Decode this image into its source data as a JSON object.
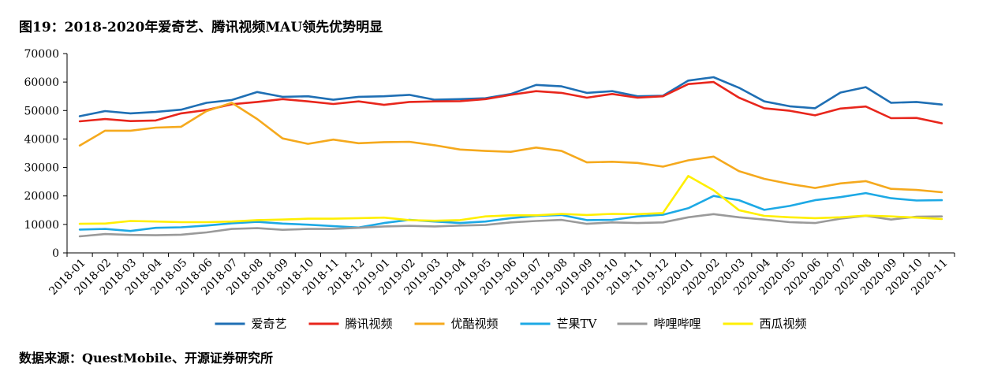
{
  "title": "图19：2018-2020年爱奇艺、腾讯视频MAU领先优势明显",
  "source": "数据来源：QuestMobile、开源证券研究所",
  "chart_data": {
    "type": "line",
    "x": [
      "2018-01",
      "2018-02",
      "2018-03",
      "2018-04",
      "2018-05",
      "2018-06",
      "2018-07",
      "2018-08",
      "2018-09",
      "2018-10",
      "2018-11",
      "2018-12",
      "2019-01",
      "2019-02",
      "2019-03",
      "2019-04",
      "2019-05",
      "2019-06",
      "2019-07",
      "2019-08",
      "2019-09",
      "2019-10",
      "2019-11",
      "2019-12",
      "2020-01",
      "2020-02",
      "2020-03",
      "2020-04",
      "2020-05",
      "2020-06",
      "2020-07",
      "2020-08",
      "2020-09",
      "2020-10",
      "2020-11"
    ],
    "yticks": [
      "0",
      "10000",
      "20000",
      "30000",
      "40000",
      "50000",
      "60000",
      "70000"
    ],
    "ylim": [
      0,
      70000
    ],
    "legend_position": "bottom",
    "series": [
      {
        "name": "爱奇艺",
        "color": "#1f6fb4",
        "values": [
          48000,
          49800,
          49000,
          49500,
          50300,
          52700,
          53700,
          56500,
          54800,
          55000,
          53800,
          54800,
          55000,
          55500,
          53800,
          54000,
          54300,
          55800,
          59000,
          58500,
          56200,
          56800,
          55000,
          55200,
          60500,
          61700,
          58000,
          53200,
          51500,
          50800,
          56300,
          58200,
          52700,
          53000,
          52100
        ]
      },
      {
        "name": "腾讯视频",
        "color": "#e8261c",
        "values": [
          46200,
          47000,
          46300,
          46500,
          49000,
          50200,
          52200,
          53000,
          54000,
          53200,
          52300,
          53200,
          52000,
          53000,
          53200,
          53300,
          54000,
          55500,
          56800,
          56200,
          54500,
          55800,
          54500,
          55000,
          59300,
          60000,
          54500,
          50800,
          49900,
          48300,
          50700,
          51400,
          47300,
          47400,
          45500
        ]
      },
      {
        "name": "优酷视频",
        "color": "#f5a91d",
        "values": [
          37700,
          42900,
          42900,
          44000,
          44300,
          49800,
          52700,
          47000,
          40200,
          38300,
          39800,
          38500,
          38900,
          39000,
          37800,
          36300,
          35800,
          35500,
          37000,
          35800,
          31800,
          32000,
          31600,
          30300,
          32500,
          33800,
          28700,
          26000,
          24200,
          22800,
          24400,
          25200,
          22500,
          22100,
          21300
        ]
      },
      {
        "name": "芒果TV",
        "color": "#1da9e5",
        "values": [
          8200,
          8400,
          7700,
          8800,
          9000,
          9600,
          10400,
          10900,
          10300,
          9900,
          9400,
          8900,
          10500,
          11600,
          11000,
          10500,
          11000,
          12200,
          13000,
          13300,
          11500,
          11600,
          12800,
          13400,
          15700,
          20000,
          18500,
          15100,
          16500,
          18500,
          19600,
          21000,
          19200,
          18400,
          18500
        ]
      },
      {
        "name": "哔哩哔哩",
        "color": "#9a9a9a",
        "values": [
          5800,
          6600,
          6300,
          6200,
          6400,
          7200,
          8400,
          8700,
          8100,
          8400,
          8400,
          8800,
          9300,
          9500,
          9300,
          9600,
          9800,
          10700,
          11200,
          11600,
          10200,
          10700,
          10500,
          10700,
          12500,
          13600,
          12500,
          11700,
          10800,
          10500,
          12000,
          13000,
          11700,
          12700,
          12800
        ]
      },
      {
        "name": "西瓜视频",
        "color": "#ffef00",
        "values": [
          10200,
          10300,
          11200,
          11000,
          10800,
          10800,
          11000,
          11500,
          11700,
          12000,
          12000,
          12200,
          12400,
          11500,
          11300,
          11500,
          12800,
          13200,
          13200,
          13700,
          13300,
          13700,
          13600,
          14000,
          27000,
          22000,
          15000,
          13000,
          12500,
          12200,
          12500,
          13100,
          12800,
          12400,
          11900
        ]
      }
    ]
  }
}
